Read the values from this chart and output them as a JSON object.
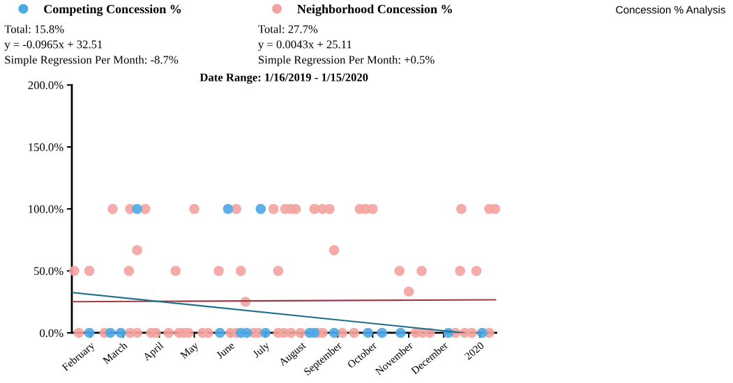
{
  "chart_data": {
    "type": "scatter",
    "title": "Concession % Analysis",
    "subtitle": "Date Range: 1/16/2019 - 1/15/2020",
    "annotations": [
      "Total: 15.8%",
      "y = -0.0965x + 32.51",
      "Simple Regression Per Month: -8.7%",
      "Total: 27.7%",
      "y = 0.0043x + 25.11",
      "Simple Regression Per Month: +0.5%"
    ],
    "xlim": [
      "2019-01-16",
      "2020-01-15"
    ],
    "xticks": [
      {
        "value": "2019-02-01",
        "label": "February"
      },
      {
        "value": "2019-03-01",
        "label": "March"
      },
      {
        "value": "2019-04-01",
        "label": "April"
      },
      {
        "value": "2019-05-01",
        "label": "May"
      },
      {
        "value": "2019-06-01",
        "label": "June"
      },
      {
        "value": "2019-07-01",
        "label": "July"
      },
      {
        "value": "2019-08-01",
        "label": "August"
      },
      {
        "value": "2019-09-01",
        "label": "September"
      },
      {
        "value": "2019-10-01",
        "label": "October"
      },
      {
        "value": "2019-11-01",
        "label": "November"
      },
      {
        "value": "2019-12-01",
        "label": "December"
      },
      {
        "value": "2020-01-01",
        "label": "2020"
      }
    ],
    "ylim": [
      0,
      200
    ],
    "yticks": [
      {
        "value": 0,
        "label": "0.0%"
      },
      {
        "value": 50,
        "label": "50.0%"
      },
      {
        "value": 100,
        "label": "100.0%"
      },
      {
        "value": 150,
        "label": "150.0%"
      },
      {
        "value": 200,
        "label": "200.0%"
      }
    ],
    "grid": false,
    "legend": "top left",
    "marker": "circle",
    "series": [
      {
        "name": "Competing Concession %",
        "color": "#4da9e6",
        "x": [
          "2019-03-13",
          "2019-05-30",
          "2019-06-27",
          "2019-01-31",
          "2019-02-18",
          "2019-02-27",
          "2019-05-23",
          "2019-06-10",
          "2019-06-15",
          "2019-07-01",
          "2019-08-08",
          "2019-08-12",
          "2019-08-29",
          "2019-09-27",
          "2019-10-09",
          "2019-10-25",
          "2019-12-05",
          "2020-01-03"
        ],
        "values": [
          100,
          100,
          100,
          0,
          0,
          0,
          0,
          0,
          0,
          0,
          0,
          0,
          0,
          0,
          0,
          0,
          0,
          0
        ]
      },
      {
        "name": "Neighborhood Concession %",
        "color": "#f4a3a0",
        "x": [
          "2019-02-20",
          "2019-03-07",
          "2019-03-20",
          "2019-05-01",
          "2019-06-06",
          "2019-07-08",
          "2019-07-18",
          "2019-07-23",
          "2019-07-27",
          "2019-08-12",
          "2019-08-19",
          "2019-08-25",
          "2019-09-20",
          "2019-09-25",
          "2019-10-01",
          "2019-12-16",
          "2020-01-09",
          "2020-01-14",
          "2019-03-13",
          "2019-08-29",
          "2019-01-18",
          "2019-01-31",
          "2019-03-06",
          "2019-04-15",
          "2019-05-22",
          "2019-06-10",
          "2019-07-12",
          "2019-10-24",
          "2019-11-12",
          "2019-12-15",
          "2019-12-29",
          "2019-11-01",
          "2019-06-14",
          "2019-01-22",
          "2019-02-13",
          "2019-03-07",
          "2019-03-13",
          "2019-03-25",
          "2019-03-29",
          "2019-04-09",
          "2019-04-18",
          "2019-04-22",
          "2019-04-26",
          "2019-05-08",
          "2019-05-13",
          "2019-06-01",
          "2019-06-06",
          "2019-06-21",
          "2019-06-25",
          "2019-07-12",
          "2019-07-17",
          "2019-07-23",
          "2019-07-31",
          "2019-08-15",
          "2019-08-19",
          "2019-09-05",
          "2019-09-15",
          "2019-11-07",
          "2019-11-13",
          "2019-11-19",
          "2019-12-11",
          "2019-12-19",
          "2019-12-25",
          "2020-01-09"
        ],
        "values": [
          100,
          100,
          100,
          100,
          100,
          100,
          100,
          100,
          100,
          100,
          100,
          100,
          100,
          100,
          100,
          100,
          100,
          100,
          66.7,
          66.7,
          50,
          50,
          50,
          50,
          50,
          50,
          50,
          50,
          50,
          50,
          50,
          33.3,
          25,
          0,
          0,
          0,
          0,
          0,
          0,
          0,
          0,
          0,
          0,
          0,
          0,
          0,
          0,
          0,
          0,
          0,
          0,
          0,
          0,
          0,
          0,
          0,
          0,
          0,
          0,
          0,
          0,
          0,
          0,
          0
        ]
      },
      {
        "type": "line",
        "marker": "none",
        "color": "#1f6f8b",
        "x": [
          "2019-01-16",
          "2019-12-18"
        ],
        "values": [
          32.5,
          0
        ]
      },
      {
        "type": "line",
        "marker": "none",
        "color": "#9e3a48",
        "x": [
          "2019-01-16",
          "2020-01-15"
        ],
        "values": [
          25.1,
          26.7
        ]
      }
    ]
  }
}
